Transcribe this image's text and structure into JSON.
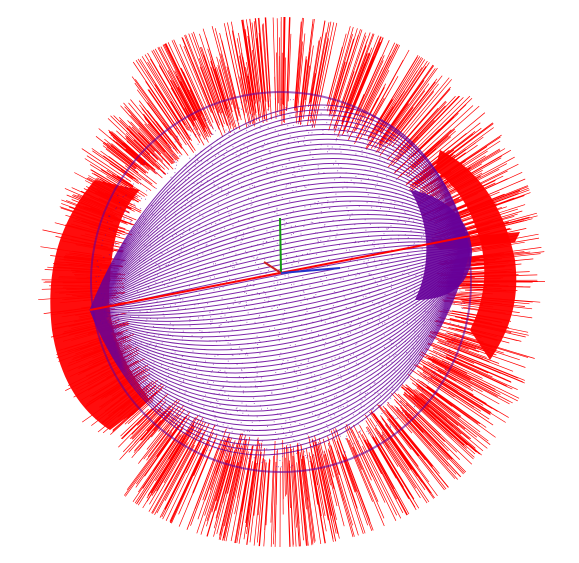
{
  "scene": {
    "background": "#ffffff",
    "colors": {
      "normals": "#ff0000",
      "curves": "#660099",
      "axis_x": "#2233cc",
      "axis_y": "#119911",
      "axis_z": "#cc2222"
    },
    "layers": [
      "normal-vectors",
      "field-curves",
      "coordinate-axes"
    ]
  }
}
